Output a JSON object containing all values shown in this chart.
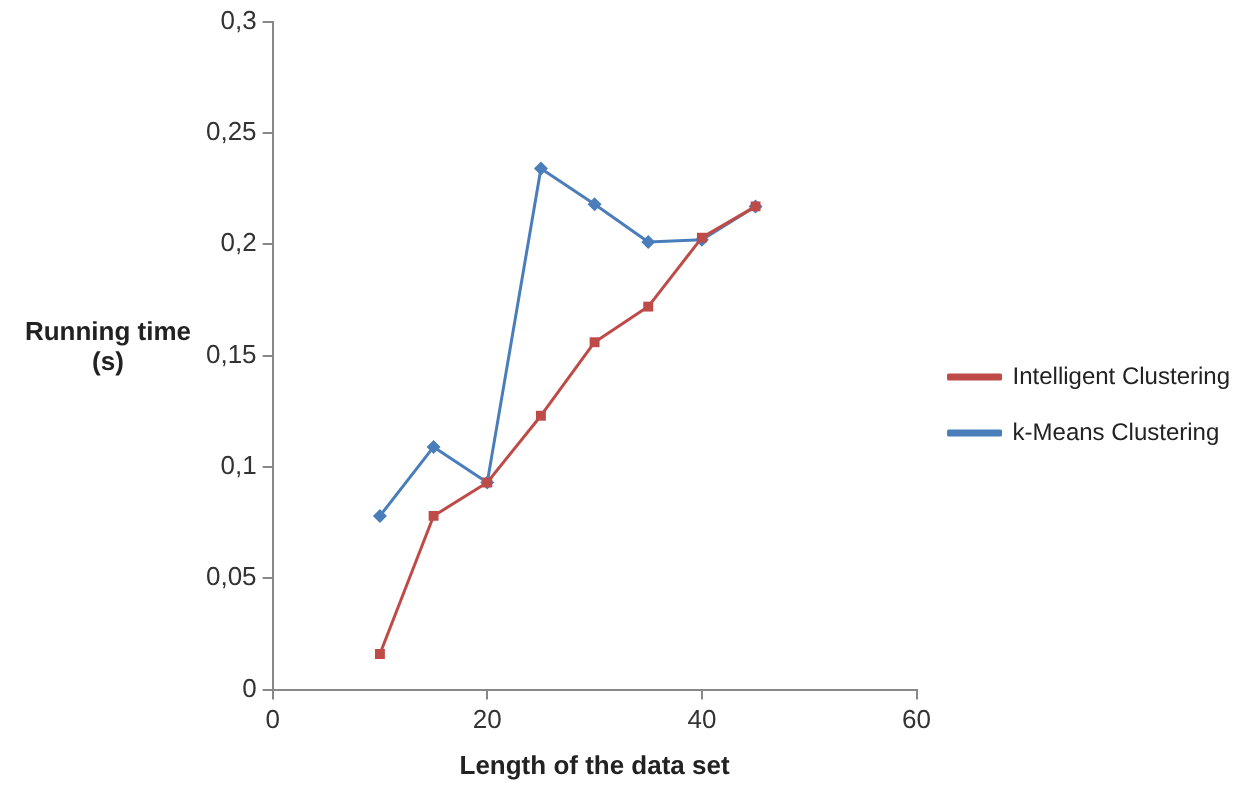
{
  "chart_data": {
    "type": "line",
    "xlabel": "Length of the data set",
    "ylabel": "Running time (s)",
    "x": [
      10,
      15,
      20,
      25,
      30,
      35,
      40,
      45
    ],
    "series": [
      {
        "name": "k-Means Clustering",
        "color": "#4a7ebb",
        "marker": "diamond",
        "values": [
          0.078,
          0.109,
          0.093,
          0.234,
          0.218,
          0.201,
          0.202,
          0.217
        ]
      },
      {
        "name": "Intelligent Clustering",
        "color": "#be4b48",
        "marker": "square",
        "values": [
          0.016,
          0.078,
          0.093,
          0.123,
          0.156,
          0.172,
          0.203,
          0.217
        ]
      }
    ],
    "xlim": [
      0,
      60
    ],
    "xticks": [
      0,
      20,
      40,
      60
    ],
    "ylim": [
      0,
      0.3
    ],
    "yticks": [
      0,
      {
        "value": 0.05,
        "label": "0,05"
      },
      {
        "value": 0.1,
        "label": "0,1"
      },
      {
        "value": 0.15,
        "label": "0,15"
      },
      {
        "value": 0.2,
        "label": "0,2"
      },
      {
        "value": 0.25,
        "label": "0,25"
      },
      {
        "value": 0.3,
        "label": "0,3"
      }
    ],
    "grid": false,
    "legend": "right"
  }
}
